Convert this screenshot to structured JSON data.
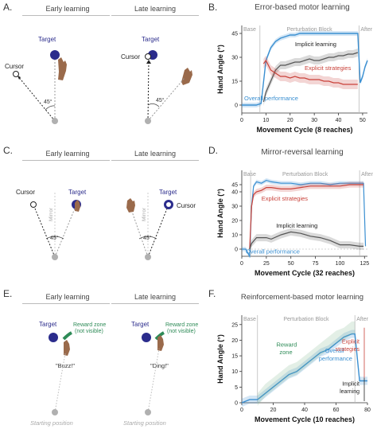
{
  "colors": {
    "target": "#2b2c8c",
    "overall": "#3a8fd1",
    "implicit": "#555555",
    "explicit": "#c9423a",
    "reward": "#2e8b57",
    "hand": "#9a6a4b",
    "start": "#b0b0b0"
  },
  "panelA": {
    "label": "A.",
    "early_title": "Early learning",
    "late_title": "Late learning",
    "target_label": "Target",
    "cursor_label": "Cursor",
    "angle_label": "45°"
  },
  "panelB": {
    "label": "B.",
    "title": "Error-based motor learning",
    "xlabel": "Movement Cycle (8 reaches)",
    "ylabel": "Hand Angle (°)",
    "base_label": "Base",
    "block_label": "Perturbation Block",
    "after_label": "After",
    "implicit_label": "Implicit learning",
    "explicit_label": "Explicit strategies",
    "overall_label": "Overall performance",
    "xticks": [
      "0",
      "10",
      "20",
      "30",
      "40",
      "50"
    ],
    "yticks": [
      "0",
      "15",
      "30",
      "45"
    ]
  },
  "panelC": {
    "label": "C.",
    "early_title": "Early learning",
    "late_title": "Late learning",
    "target_label": "Target",
    "cursor_label": "Cursor",
    "mirror_label": "Mirror",
    "angle_label": "45°"
  },
  "panelD": {
    "label": "D.",
    "title": "Mirror-reversal learning",
    "xlabel": "Movement Cycle (32 reaches)",
    "ylabel": "Hand Angle (°)",
    "base_label": "Base",
    "block_label": "Perturbation Block",
    "after_label": "After",
    "explicit_label": "Explicit strategies",
    "implicit_label": "Implicit learning",
    "overall_label": "Overall performance",
    "xticks": [
      "0",
      "25",
      "50",
      "75",
      "100",
      "125"
    ],
    "yticks": [
      "0",
      "10",
      "20",
      "30",
      "40",
      "45"
    ]
  },
  "panelE": {
    "label": "E.",
    "early_title": "Early learning",
    "late_title": "Late learning",
    "target_label": "Target",
    "reward_label_1": "Reward zone",
    "reward_label_2": "(not visible)",
    "buzz": "\"Buzz!\"",
    "ding": "\"Ding!\"",
    "start_label": "Starting position"
  },
  "panelF": {
    "label": "F.",
    "title": "Reinforcement-based motor learning",
    "xlabel": "Movement Cycle (10 reaches)",
    "ylabel": "Hand Angle (°)",
    "base_label": "Base",
    "block_label": "Perturbation Block",
    "after_label": "After",
    "reward_label_1": "Reward",
    "reward_label_2": "zone",
    "overall_label_1": "Overall",
    "overall_label_2": "performance",
    "explicit_label_1": "Explicit",
    "explicit_label_2": "strategies",
    "implicit_label_1": "Implicit",
    "implicit_label_2": "learning",
    "xticks": [
      "0",
      "20",
      "40",
      "60",
      "80"
    ],
    "yticks": [
      "0",
      "5",
      "10",
      "15",
      "20",
      "25"
    ]
  },
  "chart_data": [
    {
      "panel": "B",
      "type": "line",
      "title": "Error-based motor learning",
      "xlabel": "Movement Cycle (8 reaches)",
      "ylabel": "Hand Angle (°)",
      "xlim": [
        0,
        52
      ],
      "ylim": [
        -5,
        50
      ],
      "series": [
        {
          "name": "Overall performance",
          "x": [
            0,
            2,
            4,
            6,
            8,
            10,
            12,
            14,
            16,
            18,
            20,
            22,
            24,
            26,
            28,
            30,
            32,
            34,
            36,
            38,
            40,
            42,
            44,
            46,
            48,
            49,
            50,
            51,
            52
          ],
          "values": [
            0,
            0,
            0,
            0,
            1,
            28,
            36,
            40,
            42,
            43,
            44,
            44,
            45,
            45,
            45,
            45,
            45,
            45,
            45,
            45,
            45,
            45,
            45,
            45,
            45,
            14,
            18,
            24,
            28
          ]
        },
        {
          "name": "Implicit learning",
          "x": [
            9,
            10,
            12,
            14,
            16,
            18,
            20,
            22,
            24,
            26,
            28,
            30,
            32,
            34,
            36,
            38,
            40,
            42,
            44,
            46,
            48
          ],
          "values": [
            2,
            8,
            15,
            22,
            25,
            25,
            26,
            27,
            27,
            28,
            29,
            28,
            28,
            29,
            30,
            30,
            31,
            31,
            32,
            32,
            33
          ]
        },
        {
          "name": "Explicit strategies",
          "x": [
            9,
            10,
            12,
            14,
            16,
            18,
            20,
            22,
            24,
            26,
            28,
            30,
            32,
            34,
            36,
            38,
            40,
            42,
            44,
            46,
            48
          ],
          "values": [
            26,
            28,
            22,
            20,
            18,
            18,
            17,
            18,
            17,
            17,
            16,
            16,
            16,
            15,
            15,
            14,
            14,
            13,
            13,
            13,
            13
          ]
        }
      ]
    },
    {
      "panel": "D",
      "type": "line",
      "title": "Mirror-reversal learning",
      "xlabel": "Movement Cycle (32 reaches)",
      "ylabel": "Hand Angle (°)",
      "xlim": [
        0,
        128
      ],
      "ylim": [
        -5,
        55
      ],
      "series": [
        {
          "name": "Overall performance",
          "x": [
            0,
            4,
            8,
            10,
            12,
            15,
            20,
            25,
            30,
            40,
            50,
            60,
            70,
            80,
            90,
            100,
            110,
            120,
            124,
            126
          ],
          "values": [
            0,
            0,
            -5,
            30,
            44,
            47,
            46,
            48,
            47,
            46,
            46,
            45,
            46,
            46,
            45,
            46,
            46,
            46,
            46,
            2
          ]
        },
        {
          "name": "Explicit strategies",
          "x": [
            8,
            10,
            12,
            15,
            20,
            25,
            30,
            40,
            50,
            60,
            70,
            80,
            90,
            100,
            110,
            120,
            124
          ],
          "values": [
            0,
            30,
            38,
            40,
            41,
            43,
            43,
            42,
            42,
            43,
            44,
            44,
            44,
            44,
            45,
            45,
            45
          ]
        },
        {
          "name": "Implicit learning",
          "x": [
            8,
            10,
            15,
            20,
            25,
            30,
            40,
            50,
            60,
            70,
            80,
            90,
            100,
            110,
            120,
            124
          ],
          "values": [
            0,
            4,
            8,
            8,
            8,
            7,
            10,
            12,
            11,
            9,
            8,
            6,
            3,
            3,
            2,
            2
          ]
        }
      ]
    },
    {
      "panel": "F",
      "type": "line",
      "title": "Reinforcement-based motor learning",
      "xlabel": "Movement Cycle (10 reaches)",
      "ylabel": "Hand Angle (°)",
      "xlim": [
        0,
        80
      ],
      "ylim": [
        0,
        28
      ],
      "series": [
        {
          "name": "Overall performance",
          "x": [
            0,
            5,
            10,
            15,
            20,
            25,
            30,
            35,
            40,
            45,
            50,
            55,
            60,
            65,
            70,
            72,
            75,
            78,
            80
          ],
          "values": [
            0,
            1,
            1,
            3,
            5,
            7,
            9,
            10,
            12,
            14,
            16,
            17,
            19,
            21,
            22,
            22,
            7,
            7,
            7
          ]
        },
        {
          "name": "Reward zone",
          "x": [
            10,
            15,
            20,
            25,
            30,
            35,
            40,
            45,
            50,
            55,
            60,
            65,
            70,
            72
          ],
          "values": [
            1,
            4,
            6,
            8,
            10,
            11,
            13,
            15,
            17,
            19,
            21,
            22,
            24,
            24
          ]
        }
      ]
    }
  ]
}
